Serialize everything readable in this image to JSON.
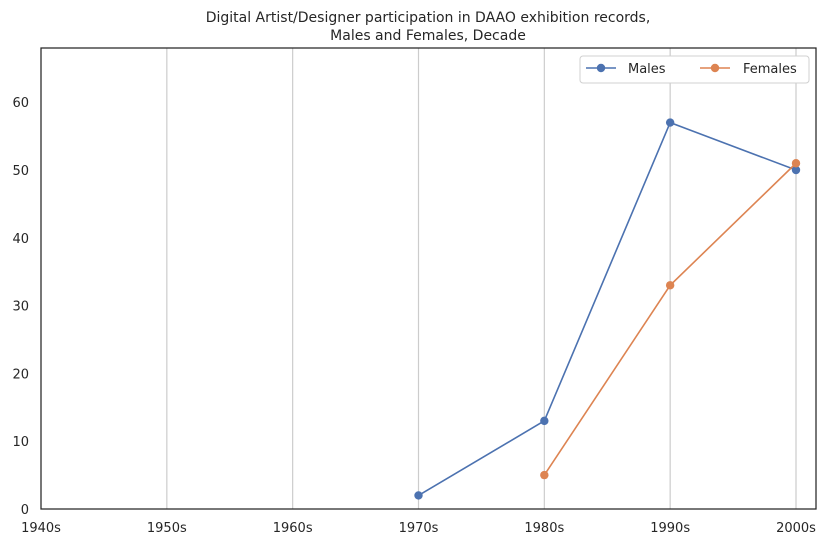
{
  "chart_data": {
    "type": "line",
    "title": "Digital Artist/Designer participation in DAAO exhibition records,",
    "subtitle": "Males and Females, Decade",
    "xlabel": "",
    "ylabel": "",
    "categories": [
      "1940s",
      "1950s",
      "1960s",
      "1970s",
      "1980s",
      "1990s",
      "2000s"
    ],
    "ylim": [
      0,
      68
    ],
    "yticks": [
      0,
      10,
      20,
      30,
      40,
      50,
      60
    ],
    "grid": "vertical",
    "legend": "top-right",
    "series": [
      {
        "name": "Males",
        "color": "#4c72b0",
        "values": [
          null,
          null,
          null,
          2,
          13,
          57,
          50
        ]
      },
      {
        "name": "Females",
        "color": "#dd8452",
        "values": [
          null,
          null,
          null,
          null,
          5,
          33,
          51
        ]
      }
    ]
  }
}
